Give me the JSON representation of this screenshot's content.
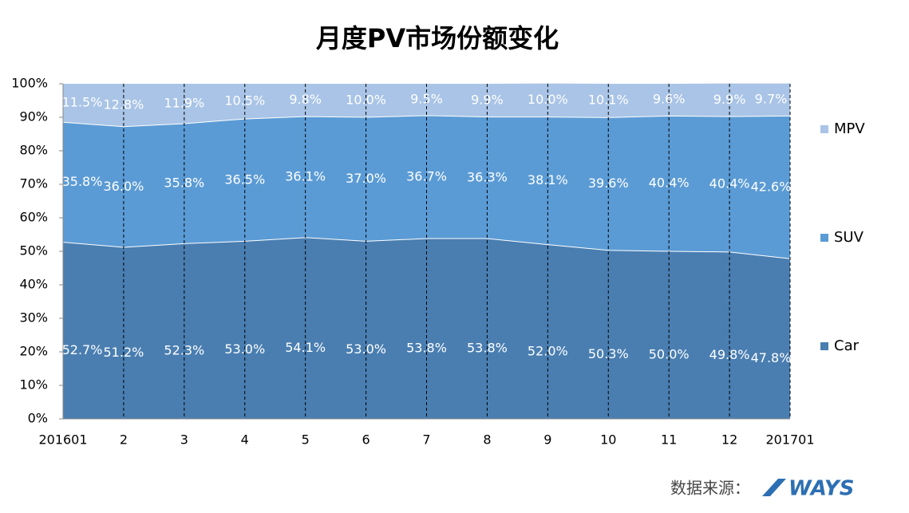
{
  "chart_data": {
    "type": "stacked-area",
    "title": "月度PV市场份额变化",
    "categories": [
      "201601",
      "2",
      "3",
      "4",
      "5",
      "6",
      "7",
      "8",
      "9",
      "10",
      "11",
      "12",
      "201701"
    ],
    "series": [
      {
        "name": "Car",
        "color": "#4a7eb1",
        "values": [
          52.7,
          51.2,
          52.3,
          53.0,
          54.1,
          53.0,
          53.8,
          53.8,
          52.0,
          50.3,
          50.0,
          49.8,
          47.8
        ],
        "value_labels": [
          "52.7%",
          "51.2%",
          "52.3%",
          "53.0%",
          "54.1%",
          "53.0%",
          "53.8%",
          "53.8%",
          "52.0%",
          "50.3%",
          "50.0%",
          "49.8%",
          "47.8%"
        ]
      },
      {
        "name": "SUV",
        "color": "#5b9bd5",
        "values": [
          35.8,
          36.0,
          35.8,
          36.5,
          36.1,
          37.0,
          36.7,
          36.3,
          38.1,
          39.6,
          40.4,
          40.4,
          42.6
        ],
        "value_labels": [
          "35.8%",
          "36.0%",
          "35.8%",
          "36.5%",
          "36.1%",
          "37.0%",
          "36.7%",
          "36.3%",
          "38.1%",
          "39.6%",
          "40.4%",
          "40.4%",
          "42.6%"
        ]
      },
      {
        "name": "MPV",
        "color": "#a9c4e6",
        "values": [
          11.5,
          12.8,
          11.9,
          10.5,
          9.8,
          10.0,
          9.5,
          9.9,
          10.0,
          10.1,
          9.6,
          9.9,
          9.7
        ],
        "value_labels": [
          "11.5%",
          "12.8%",
          "11.9%",
          "10.5%",
          "9.8%",
          "10.0%",
          "9.5%",
          "9.9%",
          "10.0%",
          "10.1%",
          "9.6%",
          "9.9%",
          "9.7%"
        ]
      }
    ],
    "ylim": [
      0,
      100
    ],
    "yticks": [
      {
        "value": 0,
        "label": "0%"
      },
      {
        "value": 10,
        "label": "10%"
      },
      {
        "value": 20,
        "label": "20%"
      },
      {
        "value": 30,
        "label": "30%"
      },
      {
        "value": 40,
        "label": "40%"
      },
      {
        "value": 50,
        "label": "50%"
      },
      {
        "value": 60,
        "label": "60%"
      },
      {
        "value": 70,
        "label": "70%"
      },
      {
        "value": 80,
        "label": "80%"
      },
      {
        "value": 90,
        "label": "90%"
      },
      {
        "value": 100,
        "label": "100%"
      }
    ],
    "legend": "right",
    "source": "数据来源：",
    "source_logo": "WAYS"
  }
}
